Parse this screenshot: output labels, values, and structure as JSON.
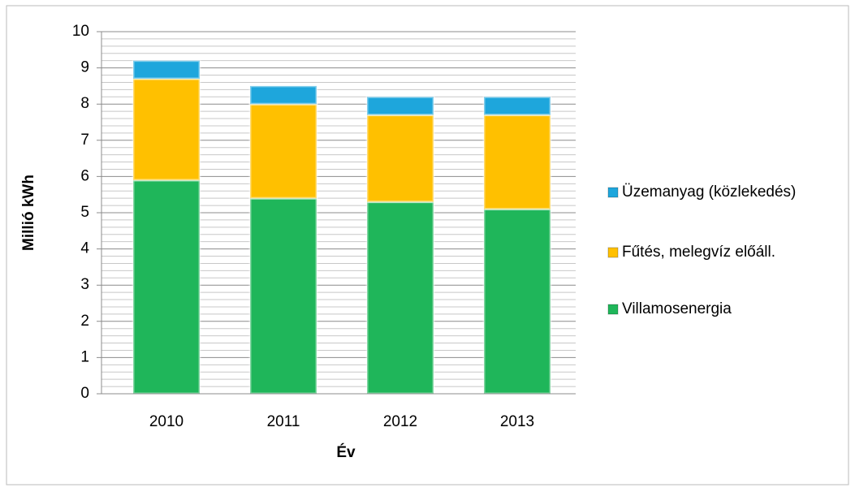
{
  "chart_data": {
    "type": "stacked_bar",
    "ylabel": "Millió kWh",
    "xlabel": "Év",
    "categories": [
      "2010",
      "2011",
      "2012",
      "2013"
    ],
    "series": [
      {
        "name": "Villamosenergia",
        "color": "#1fb65a",
        "values": [
          5.9,
          5.4,
          5.3,
          5.1
        ]
      },
      {
        "name": "Fűtés, melegvíz előáll.",
        "color": "#ffc000",
        "values": [
          2.8,
          2.6,
          2.4,
          2.6
        ]
      },
      {
        "name": "Üzemanyag (közlekedés)",
        "color": "#1ea6dc",
        "values": [
          0.5,
          0.5,
          0.5,
          0.5
        ]
      }
    ],
    "ylim": [
      0,
      10
    ],
    "yticks": [
      0,
      1,
      2,
      3,
      4,
      5,
      6,
      7,
      8,
      9,
      10
    ],
    "grid": true,
    "minor_grid_step": 0.2,
    "legend": "right"
  }
}
